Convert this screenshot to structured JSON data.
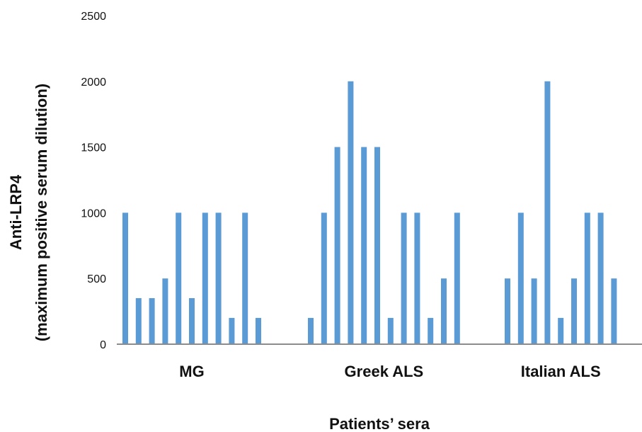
{
  "chart_data": {
    "type": "bar",
    "title": "",
    "xlabel": "Patients’ sera",
    "ylabel": "Anti-LRP4",
    "ylabel_sub": "(maximum positive serum dilution)",
    "ylim": [
      0,
      2500
    ],
    "yticks": [
      0,
      500,
      1000,
      1500,
      2000,
      2500
    ],
    "bar_color": "#5b9bd5",
    "axis_color": "#8c8c8c",
    "grid": false,
    "groups": [
      {
        "label": "MG",
        "values": [
          1000,
          350,
          350,
          500,
          1000,
          350,
          1000,
          1000,
          200,
          1000,
          200
        ]
      },
      {
        "label": "Greek ALS",
        "values": [
          200,
          1000,
          1500,
          2000,
          1500,
          1500,
          200,
          1000,
          1000,
          200,
          500,
          1000
        ]
      },
      {
        "label": "Italian ALS",
        "values": [
          500,
          1000,
          500,
          2000,
          200,
          500,
          1000,
          1000,
          500
        ]
      }
    ]
  }
}
